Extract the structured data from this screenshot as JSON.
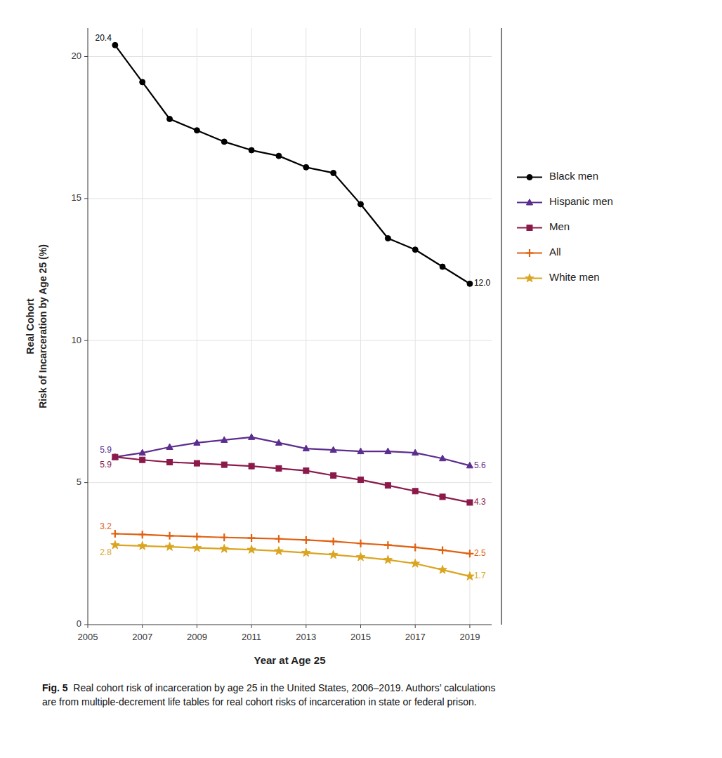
{
  "chart_data": {
    "type": "line",
    "xlabel": "Year at Age 25",
    "ylabel": "Real Cohort\nRisk of Incarceration by Age 25 (%)",
    "caption_bold": "Fig. 5",
    "caption": "  Real cohort risk of incarceration by age 25 in the United States, 2006–2019. Authors’ calculations\nare from multiple-decrement life tables for real cohort risks of incarceration in state or federal prison.",
    "x": [
      2006,
      2007,
      2008,
      2009,
      2010,
      2011,
      2012,
      2013,
      2014,
      2015,
      2016,
      2017,
      2018,
      2019
    ],
    "xlim": [
      2005,
      2019.8
    ],
    "xticks": [
      2005,
      2007,
      2009,
      2011,
      2013,
      2015,
      2017,
      2019
    ],
    "ylim": [
      0,
      21.0
    ],
    "yticks": [
      0,
      5,
      10,
      15,
      20
    ],
    "grid": true,
    "legend": "right",
    "series": [
      {
        "name": "Black men",
        "color": "#000000",
        "marker": "circle",
        "line_style": "solid",
        "values": [
          20.4,
          19.1,
          17.8,
          17.4,
          17.0,
          16.7,
          16.5,
          16.1,
          15.9,
          14.8,
          13.6,
          13.2,
          12.6,
          12.0
        ],
        "value_labels": [
          "20.4",
          null,
          null,
          null,
          null,
          null,
          null,
          null,
          null,
          null,
          null,
          null,
          null,
          "12.0"
        ]
      },
      {
        "name": "Hispanic men",
        "color": "#5B2D8E",
        "marker": "triangle",
        "line_style": "solid",
        "values": [
          5.9,
          6.05,
          6.25,
          6.4,
          6.5,
          6.6,
          6.4,
          6.2,
          6.15,
          6.1,
          6.1,
          6.05,
          5.85,
          5.6
        ],
        "value_labels": [
          "5.9",
          null,
          null,
          null,
          null,
          null,
          null,
          null,
          null,
          null,
          null,
          null,
          null,
          "5.6"
        ]
      },
      {
        "name": "Men",
        "color": "#8B1A4A",
        "marker": "square",
        "line_style": "solid",
        "values": [
          5.9,
          5.8,
          5.72,
          5.68,
          5.63,
          5.58,
          5.5,
          5.42,
          5.25,
          5.1,
          4.9,
          4.7,
          4.5,
          4.3
        ],
        "value_labels": [
          "5.9",
          null,
          null,
          null,
          null,
          null,
          null,
          null,
          null,
          null,
          null,
          null,
          null,
          "4.3"
        ]
      },
      {
        "name": "All",
        "color": "#E06010",
        "marker": "plus",
        "line_style": "solid",
        "values": [
          3.2,
          3.17,
          3.13,
          3.1,
          3.07,
          3.05,
          3.02,
          2.98,
          2.93,
          2.86,
          2.8,
          2.72,
          2.62,
          2.5
        ],
        "value_labels": [
          "3.2",
          null,
          null,
          null,
          null,
          null,
          null,
          null,
          null,
          null,
          null,
          null,
          null,
          "2.5"
        ]
      },
      {
        "name": "White men",
        "color": "#DAA520",
        "marker": "star",
        "line_style": "solid",
        "values": [
          2.8,
          2.77,
          2.74,
          2.7,
          2.67,
          2.64,
          2.59,
          2.53,
          2.46,
          2.38,
          2.28,
          2.15,
          1.93,
          1.7
        ],
        "value_labels": [
          "2.8",
          null,
          null,
          null,
          null,
          null,
          null,
          null,
          null,
          null,
          null,
          null,
          null,
          "1.7"
        ]
      }
    ]
  }
}
